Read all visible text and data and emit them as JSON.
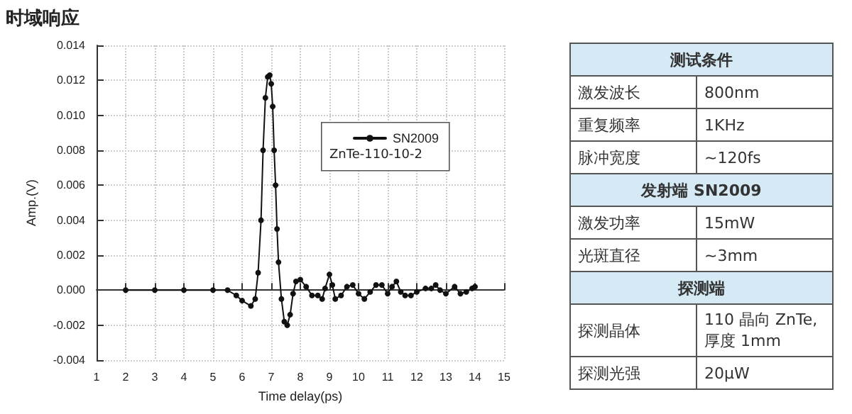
{
  "chart_data": [
    {
      "type": "line",
      "title": "时域响应",
      "xlabel": "Time delay(ps)",
      "ylabel": "Amp.(V)",
      "legend_title": "ZnTe-110-10-2",
      "legend": "top right",
      "grid": true,
      "marker": "circle",
      "line_style": "solid",
      "xlim": [
        1,
        15
      ],
      "xticks": [
        1,
        2,
        3,
        4,
        5,
        6,
        7,
        8,
        9,
        10,
        11,
        12,
        13,
        14,
        15
      ],
      "ylim": [
        -0.004,
        0.014
      ],
      "yticks": [
        {
          "value": -0.004,
          "label": "-0.004"
        },
        {
          "value": -0.002,
          "label": "-0.002"
        },
        {
          "value": 0,
          "label": "0.000"
        },
        {
          "value": 0.002,
          "label": "0.002"
        },
        {
          "value": 0.004,
          "label": "0.004"
        },
        {
          "value": 0.006,
          "label": "0.006"
        },
        {
          "value": 0.008,
          "label": "0.008"
        },
        {
          "value": 0.01,
          "label": "0.010"
        },
        {
          "value": 0.012,
          "label": "0.012"
        },
        {
          "value": 0.014,
          "label": "0.014"
        }
      ],
      "series": [
        {
          "name": "SN2009",
          "color": "#111111",
          "x": [
            2,
            3,
            4,
            5,
            5.5,
            5.8,
            6.0,
            6.3,
            6.45,
            6.55,
            6.65,
            6.72,
            6.8,
            6.88,
            6.95,
            7.0,
            7.05,
            7.1,
            7.15,
            7.2,
            7.25,
            7.35,
            7.45,
            7.55,
            7.65,
            7.75,
            7.85,
            8.0,
            8.2,
            8.4,
            8.6,
            8.75,
            8.85,
            9.0,
            9.1,
            9.2,
            9.4,
            9.6,
            9.8,
            10.0,
            10.2,
            10.4,
            10.6,
            10.8,
            11.0,
            11.15,
            11.3,
            11.45,
            11.6,
            11.8,
            12.0,
            12.3,
            12.5,
            12.65,
            12.8,
            13.0,
            13.3,
            13.5,
            13.7,
            13.9,
            14.0
          ],
          "values": [
            0,
            0,
            0,
            0,
            0,
            -0.0003,
            -0.0006,
            -0.0009,
            -0.0005,
            0.001,
            0.004,
            0.008,
            0.011,
            0.0122,
            0.0123,
            0.0118,
            0.0105,
            0.008,
            0.006,
            0.0035,
            0.0016,
            -0.0005,
            -0.0018,
            -0.002,
            -0.0014,
            -0.0002,
            0.0005,
            0.0006,
            0.0002,
            -0.0003,
            -0.0003,
            -0.0005,
            0.0001,
            0.0009,
            0.0003,
            -0.0005,
            -0.0003,
            0.0002,
            0.0003,
            -0.0002,
            -0.0005,
            -0.0001,
            0.0003,
            0.0003,
            -0.0002,
            0.0002,
            0.0005,
            -0.0001,
            -0.0003,
            -0.0003,
            -0.0001,
            0.0001,
            0.0001,
            0.0003,
            0,
            -0.0002,
            0.0002,
            -0.0002,
            -0.0001,
            0.0001,
            0.0002
          ]
        }
      ]
    },
    {
      "type": "other",
      "title": "测试条件",
      "categories": [
        "激发波长",
        "重复频率",
        "脉冲宽度"
      ],
      "annotations": [
        "800nm",
        "1KHz",
        "~120fs"
      ]
    },
    {
      "type": "other",
      "title": "发射端 SN2009",
      "categories": [
        "激发功率",
        "光斑直径"
      ],
      "annotations": [
        "15mW",
        "~3mm"
      ]
    },
    {
      "type": "other",
      "title": "探测端",
      "categories": [
        "探测晶体",
        "探测光强"
      ],
      "annotations": [
        "110 晶向 ZnTe, 厚度 1mm",
        "20μW"
      ]
    }
  ]
}
